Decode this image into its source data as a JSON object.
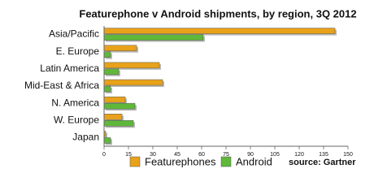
{
  "chart_data": {
    "type": "hbar",
    "title": "Featurephone v Android shipments, by region, 3Q 2012",
    "categories": [
      "Asia/Pacific",
      "E. Europe",
      "Latin America",
      "Mid-East & Africa",
      "N. America",
      "W. Europe",
      "Japan"
    ],
    "series": [
      {
        "name": "Featurephones",
        "color": "#e8a21a",
        "values": [
          142,
          20,
          34,
          36,
          13,
          11,
          1
        ]
      },
      {
        "name": "Android",
        "color": "#5fb83a",
        "values": [
          61,
          4,
          9,
          4,
          19,
          18,
          4
        ]
      }
    ],
    "xlim": [
      0,
      150
    ],
    "xticks": [
      0,
      15,
      30,
      45,
      60,
      75,
      90,
      105,
      120,
      135,
      150
    ],
    "grid": false,
    "legend": "bottom",
    "annotation": "source: Gartner"
  }
}
